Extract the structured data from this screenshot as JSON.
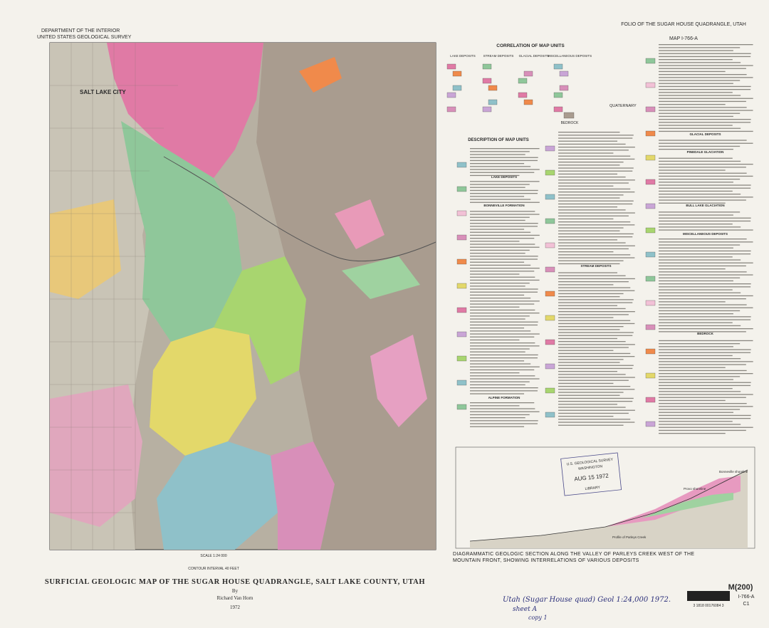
{
  "header": {
    "agency": "DEPARTMENT OF THE INTERIOR",
    "survey": "UNITED STATES GEOLOGICAL SURVEY",
    "folio": "FOLIO OF THE SUGAR HOUSE QUADRANGLE, UTAH",
    "map_number": "MAP I-766-A"
  },
  "map": {
    "city_label": "SALT LAKE CITY",
    "scale": "SCALE 1:24 000",
    "contour": "CONTOUR INTERVAL 40 FEET"
  },
  "legend": {
    "correlation_title": "CORRELATION OF MAP UNITS",
    "columns": [
      "LAKE DEPOSITS",
      "STREAM DEPOSITS",
      "GLACIAL DEPOSITS",
      "MISCELLANEOUS DEPOSITS"
    ],
    "quaternary": "QUATERNARY",
    "bedrock": "BEDROCK",
    "description_title": "DESCRIPTION OF MAP UNITS",
    "headings": [
      "LAKE DEPOSITS",
      "BONNEVILLE FORMATION",
      "ALPINE FORMATION",
      "STREAM DEPOSITS",
      "GLACIAL DEPOSITS",
      "PINEDALE GLACIATION",
      "BULL LAKE GLACIATION",
      "MISCELLANEOUS DEPOSITS",
      "BEDROCK"
    ]
  },
  "section": {
    "caption": "DIAGRAMMATIC GEOLOGIC SECTION ALONG THE VALLEY OF PARLEYS CREEK WEST OF THE MOUNTAIN FRONT, SHOWING INTERRELATIONS OF VARIOUS DEPOSITS",
    "labels": [
      "Profile of Parleys Creek",
      "Provo shoreline",
      "Bonneville shoreline"
    ]
  },
  "stamp": {
    "agency": "U.S. GEOLOGICAL SURVEY",
    "city": "WASHINGTON",
    "date": "AUG 15 1972",
    "library": "LIBRARY"
  },
  "title": {
    "main": "SURFICIAL GEOLOGIC MAP OF THE SUGAR HOUSE QUADRANGLE, SALT LAKE COUNTY, UTAH",
    "by": "By",
    "author": "Richard Van Horn",
    "year": "1972"
  },
  "catalog": {
    "call_number": "M(200)",
    "series": "I-766-A",
    "copy": "C1",
    "handwritten": "Utah (Sugar House quad) Geol 1:24,000 1972.",
    "sheet": "sheet A",
    "copy_note": "copy 1",
    "barcode": "3 1818 00176084 3"
  }
}
